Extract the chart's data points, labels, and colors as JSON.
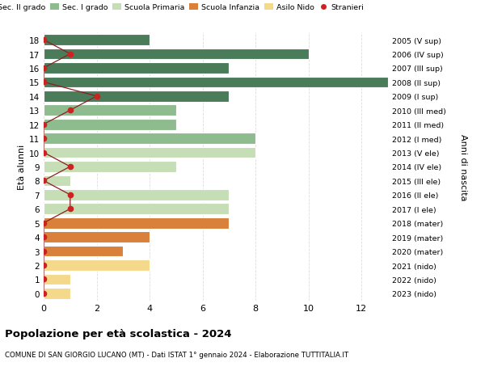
{
  "ages": [
    18,
    17,
    16,
    15,
    14,
    13,
    12,
    11,
    10,
    9,
    8,
    7,
    6,
    5,
    4,
    3,
    2,
    1,
    0
  ],
  "years": [
    "2005 (V sup)",
    "2006 (IV sup)",
    "2007 (III sup)",
    "2008 (II sup)",
    "2009 (I sup)",
    "2010 (III med)",
    "2011 (II med)",
    "2012 (I med)",
    "2013 (V ele)",
    "2014 (IV ele)",
    "2015 (III ele)",
    "2016 (II ele)",
    "2017 (I ele)",
    "2018 (mater)",
    "2019 (mater)",
    "2020 (mater)",
    "2021 (nido)",
    "2022 (nido)",
    "2023 (nido)"
  ],
  "bar_values": [
    4,
    10,
    7,
    13,
    7,
    5,
    5,
    8,
    8,
    5,
    1,
    7,
    7,
    7,
    4,
    3,
    4,
    1,
    1
  ],
  "bar_colors": [
    "#4a7c59",
    "#4a7c59",
    "#4a7c59",
    "#4a7c59",
    "#4a7c59",
    "#8fbc8f",
    "#8fbc8f",
    "#8fbc8f",
    "#c5deb5",
    "#c5deb5",
    "#c5deb5",
    "#c5deb5",
    "#c5deb5",
    "#d9813a",
    "#d9813a",
    "#d9813a",
    "#f5d98b",
    "#f5d98b",
    "#f5d98b"
  ],
  "stranieri_x": [
    0,
    1,
    0,
    0,
    2,
    1,
    0,
    0,
    0,
    1,
    0,
    1,
    1,
    0,
    0,
    0,
    0,
    0,
    0
  ],
  "legend_labels": [
    "Sec. II grado",
    "Sec. I grado",
    "Scuola Primaria",
    "Scuola Infanzia",
    "Asilo Nido",
    "Stranieri"
  ],
  "legend_colors": [
    "#4a7c59",
    "#8fbc8f",
    "#c5deb5",
    "#d9813a",
    "#f5d98b",
    "#cc2222"
  ],
  "ylabel_left": "Età alunni",
  "ylabel_right": "Anni di nascita",
  "title": "Popolazione per età scolastica - 2024",
  "subtitle": "COMUNE DI SAN GIORGIO LUCANO (MT) - Dati ISTAT 1° gennaio 2024 - Elaborazione TUTTITALIA.IT",
  "xlim_max": 13,
  "xticks": [
    0,
    2,
    4,
    6,
    8,
    10,
    12
  ],
  "plot_bg_color": "#ffffff",
  "fig_bg_color": "#ffffff",
  "grid_color": "#dddddd",
  "stranieri_line_color": "#8b2020"
}
